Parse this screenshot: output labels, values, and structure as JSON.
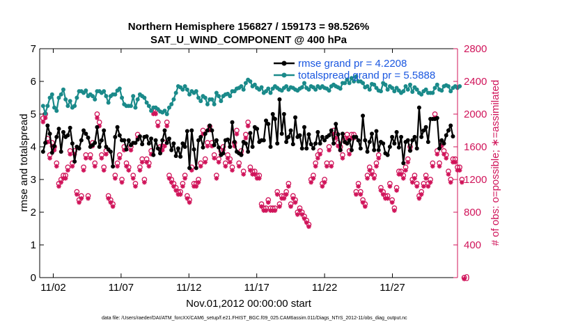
{
  "chart_data": {
    "type": "line",
    "title_line1": "Northern Hemisphere 156827 / 159173 = 98.526%",
    "title_line2": "SAT_U_WIND_COMPONENT @ 400 hPa",
    "xlabel": "Nov.01,2012 00:00:00 start",
    "ylabel_left": "rmse and totalspread",
    "ylabel_right": "# of obs: o=possible; ∗=assimilated",
    "footer": "data file: /Users/raeder/DAI/ATM_forcXX/CAM6_setup/f.e21.FHIST_BGC.f09_025.CAM6assim.011/Diags_NTrS_2012-11/obs_diag_output.nc",
    "x_tick_labels": [
      "11/02",
      "11/07",
      "11/12",
      "11/17",
      "11/22",
      "11/27"
    ],
    "x_tick_days": [
      2,
      7,
      12,
      17,
      22,
      27
    ],
    "xlim": [
      1,
      31.8
    ],
    "ylim_left": [
      0,
      7
    ],
    "yticks_left": [
      "0",
      "1",
      "2",
      "3",
      "4",
      "5",
      "6",
      "7"
    ],
    "ylim_right": [
      0,
      2800
    ],
    "yticks_right": [
      "0",
      "400",
      "800",
      "1200",
      "1600",
      "2000",
      "2400",
      "2800"
    ],
    "colors": {
      "rmse": "#000000",
      "spread": "#1a8a8a",
      "obs": "#d0145a",
      "legend_text": "#1a57e0"
    },
    "series": [
      {
        "name": "rmse",
        "legend": "rmse grand pr = 4.2208",
        "values": [
          3.85,
          4.12,
          4.65,
          4.4,
          3.82,
          4.02,
          4.3,
          4.55,
          3.85,
          4.45,
          4.3,
          4.35,
          4.58,
          4.1,
          3.55,
          4.0,
          3.95,
          4.2,
          4.5,
          4.4,
          4.28,
          4.0,
          4.05,
          4.12,
          4.6,
          4.0,
          4.2,
          4.5,
          4.0,
          3.92,
          3.85,
          3.4,
          4.3,
          4.6,
          4.35,
          4.2,
          4.2,
          3.92,
          4.2,
          4.05,
          4.12,
          4.12,
          4.22,
          4.32,
          4.08,
          4.3,
          4.32,
          4.1,
          4.25,
          3.75,
          4.2,
          3.95,
          3.8,
          4.2,
          4.5,
          4.12,
          4.25,
          3.9,
          4.1,
          3.72,
          3.95,
          3.7,
          4.1,
          4.0,
          4.48,
          3.35,
          4.5,
          3.92,
          3.35,
          4.2,
          4.3,
          3.98,
          4.4,
          4.5,
          4.65,
          4.5,
          4.05,
          4.2,
          3.98,
          3.75,
          3.8,
          4.2,
          4.22,
          4.0,
          4.75,
          4.15,
          3.85,
          3.8,
          3.75,
          4.15,
          4.1,
          3.85,
          4.42,
          4.0,
          4.6,
          4.55,
          4.15,
          4.2,
          4.2,
          4.8,
          4.7,
          4.0,
          5.0,
          4.85,
          4.1,
          5.45,
          4.4,
          5.0,
          4.15,
          4.3,
          4.5,
          4.08,
          4.9,
          4.3,
          4.35,
          3.95,
          4.6,
          3.95,
          4.38,
          4.08,
          3.95,
          4.1,
          4.45,
          4.1,
          4.3,
          4.2,
          4.3,
          4.35,
          4.5,
          4.1,
          4.7,
          4.38,
          3.9,
          4.4,
          4.15,
          4.1,
          4.2,
          3.9,
          4.3,
          4.3,
          4.2,
          3.95,
          4.95,
          4.2,
          3.85,
          4.15,
          4.4,
          3.9,
          4.48,
          3.9,
          4.15,
          4.1,
          3.8,
          3.75,
          4.0,
          4.3,
          4.1,
          4.45,
          3.98,
          4.3,
          3.5,
          4.15,
          4.2,
          3.88,
          4.2,
          4.3,
          3.95,
          5.2,
          4.3,
          4.5,
          4.6,
          4.15,
          4.85,
          4.85,
          4.85,
          4.88,
          3.95,
          4.2,
          4.1,
          4.35,
          4.5,
          4.65,
          4.32
        ]
      },
      {
        "name": "totalspread",
        "legend": "totalspread grand pr = 5.5888",
        "values": [
          5.25,
          5.02,
          5.25,
          5.5,
          5.6,
          5.2,
          5.1,
          5.5,
          5.6,
          5.75,
          5.45,
          5.25,
          5.4,
          5.2,
          5.25,
          5.5,
          5.7,
          5.7,
          5.65,
          5.72,
          5.55,
          5.6,
          5.55,
          5.45,
          5.7,
          5.7,
          5.65,
          5.7,
          5.55,
          5.35,
          5.55,
          5.6,
          5.6,
          5.72,
          5.78,
          5.5,
          5.3,
          5.25,
          5.25,
          5.25,
          5.55,
          5.2,
          5.45,
          5.6,
          5.55,
          5.5,
          5.35,
          5.25,
          5.1,
          5.2,
          5.2,
          5.15,
          5.08,
          5.05,
          5.1,
          5.0,
          5.2,
          5.3,
          5.45,
          5.65,
          5.85,
          5.82,
          5.75,
          5.85,
          5.75,
          5.6,
          5.7,
          5.65,
          5.7,
          5.5,
          5.4,
          5.55,
          5.5,
          5.3,
          5.45,
          5.45,
          5.3,
          5.65,
          5.55,
          5.4,
          5.55,
          5.6,
          5.62,
          5.55,
          5.7,
          5.7,
          5.78,
          5.8,
          5.85,
          5.75,
          5.95,
          6.05,
          6.0,
          5.85,
          5.9,
          5.8,
          5.75,
          5.82,
          5.65,
          5.7,
          5.78,
          5.65,
          5.78,
          5.85,
          5.8,
          5.75,
          5.72,
          5.8,
          5.85,
          5.75,
          5.82,
          5.8,
          5.75,
          5.72,
          5.78,
          5.82,
          5.95,
          5.8,
          5.75,
          5.85,
          5.82,
          5.75,
          5.85,
          5.8,
          5.85,
          5.8,
          5.78,
          5.72,
          5.85,
          5.9,
          5.85,
          5.82,
          5.78,
          5.95,
          5.95,
          6.05,
          5.95,
          6.1,
          6.0,
          6.15,
          6.0,
          6.0,
          5.95,
          5.82,
          5.85,
          5.75,
          5.92,
          5.9,
          5.8,
          5.72,
          5.7,
          5.95,
          5.9,
          5.75,
          5.85,
          5.8,
          5.7,
          5.8,
          5.72,
          5.65,
          5.7,
          5.85,
          5.75,
          5.9,
          5.68,
          5.82,
          5.75,
          5.65,
          5.6,
          5.7,
          5.75,
          5.65,
          5.65,
          5.65,
          5.8,
          5.9,
          5.75,
          5.72,
          5.85,
          5.88,
          5.85,
          5.7,
          5.8,
          5.85,
          5.8,
          5.85
        ]
      },
      {
        "name": "possible",
        "marker": "o",
        "values": [
          1950,
          2000,
          1700,
          1500,
          1650,
          1600,
          1400,
          1150,
          1200,
          1250,
          1250,
          1350,
          1550,
          1400,
          1550,
          1050,
          950,
          1000,
          1350,
          1500,
          1000,
          1500,
          1650,
          1400,
          2000,
          1900,
          1500,
          1350,
          1550,
          1000,
          950,
          900,
          1250,
          1400,
          1500,
          1200,
          1600,
          1400,
          1350,
          1600,
          1250,
          1150,
          1750,
          1350,
          1450,
          1200,
          1450,
          1400,
          1550,
          2050,
          2050,
          1900,
          1600,
          1600,
          1650,
          1900,
          1250,
          1200,
          1150,
          1100,
          1050,
          1050,
          1150,
          1250,
          1000,
          950,
          1350,
          1150,
          1150,
          1200,
          1400,
          1800,
          1450,
          1650,
          1850,
          1650,
          1500,
          1250,
          1450,
          1550,
          1600,
          1400,
          1500,
          1450,
          1350,
          1650,
          1800,
          1400,
          1550,
          1300,
          1750,
          1900,
          1350,
          1300,
          1300,
          1250,
          1250,
          900,
          850,
          850,
          950,
          850,
          850,
          850,
          1050,
          900,
          1000,
          1000,
          1050,
          1150,
          900,
          1000,
          950,
          800,
          850,
          800,
          750,
          700,
          650,
          1200,
          1250,
          1400,
          1500,
          1550,
          1150,
          1200,
          1400,
          1600,
          1400,
          1800,
          1750,
          1650,
          1600,
          1500,
          1700,
          1750,
          1550,
          1750,
          1750,
          1050,
          1150,
          1050,
          950,
          900,
          1250,
          1350,
          1300,
          1250,
          1400,
          1500,
          1100,
          1050,
          1000,
          1000,
          1150,
          950,
          850,
          1100,
          1300,
          1300,
          1250,
          1350,
          1450,
          1600,
          1200,
          1250,
          1150,
          1000,
          1050,
          1150,
          1250,
          1150,
          1200,
          1400,
          2000,
          1550,
          1400,
          1650,
          1550,
          1500,
          1300,
          1200,
          1450,
          1450,
          1350,
          1350,
          1200,
          0
        ]
      }
    ]
  }
}
